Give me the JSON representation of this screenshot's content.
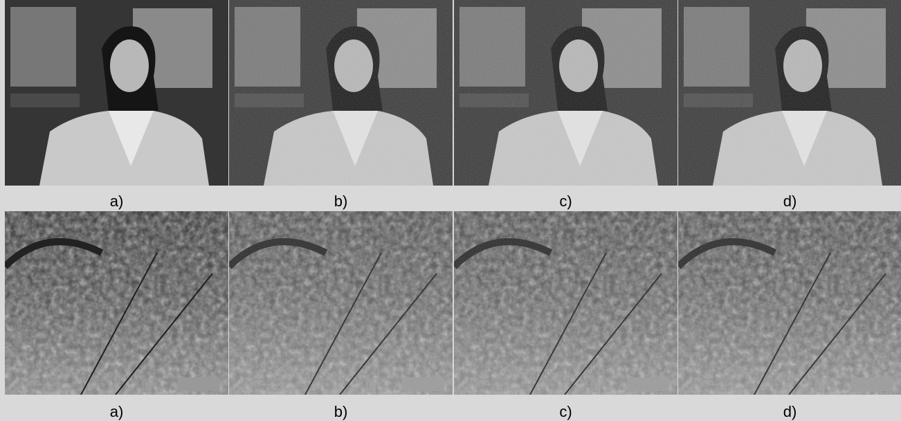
{
  "rows": [
    {
      "captions": [
        "a)",
        "b)",
        "c)",
        "d)"
      ]
    },
    {
      "captions": [
        "a)",
        "b)",
        "c)",
        "d)"
      ]
    }
  ]
}
